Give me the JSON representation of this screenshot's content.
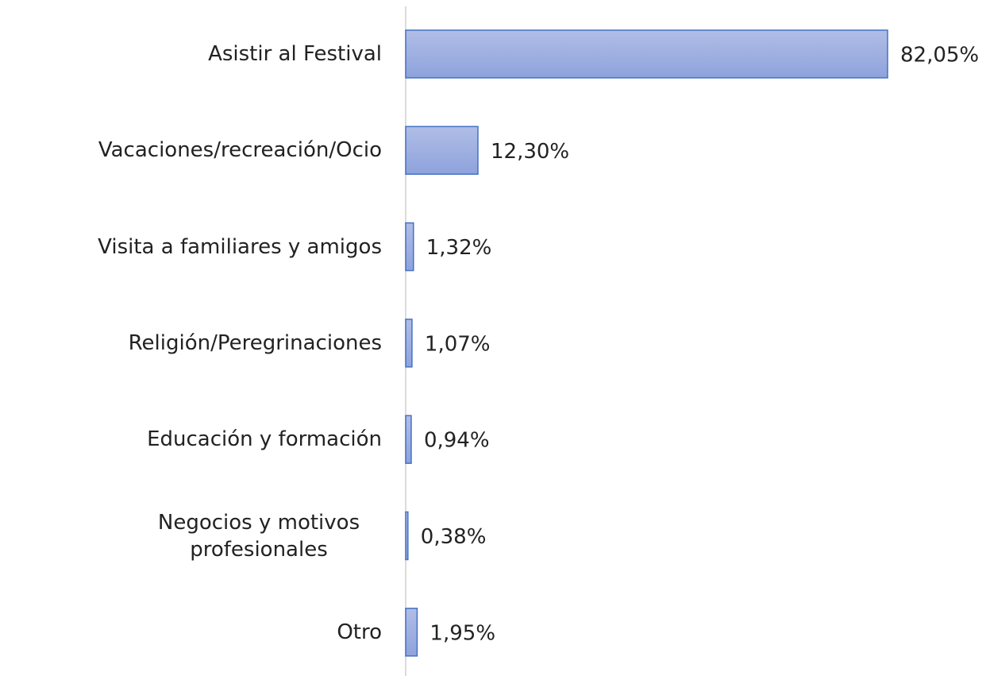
{
  "chart_data": {
    "type": "barh",
    "categories": [
      "Asistir al Festival",
      "Vacaciones/recreación/Ocio",
      "Visita a familiares y amigos",
      "Religión/Peregrinaciones",
      "Educación y formación",
      "Negocios y motivos profesionales",
      "Otro"
    ],
    "values": [
      82.05,
      12.3,
      1.32,
      1.07,
      0.94,
      0.38,
      1.95
    ],
    "value_labels": [
      "82,05%",
      "12,30%",
      "1,32%",
      "1,07%",
      "0,94%",
      "0,38%",
      "1,95%"
    ],
    "color": "#4472c4"
  }
}
